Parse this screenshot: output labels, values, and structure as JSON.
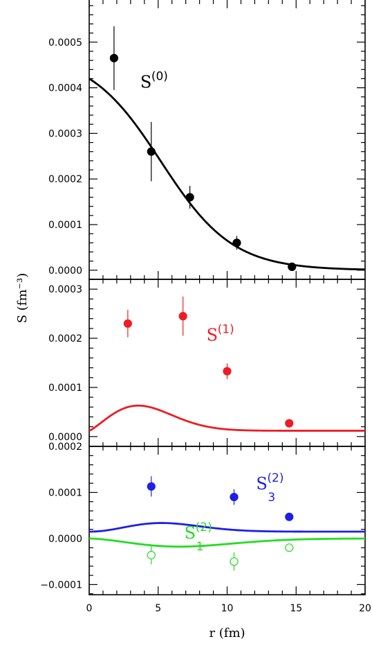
{
  "chart_data": {
    "type": "scatter",
    "xlabel": "r (fm)",
    "ylabel": "S (fm⁻³)",
    "xlim": [
      0,
      20
    ],
    "x_ticks": [
      "0",
      "5",
      "10",
      "15",
      "20"
    ],
    "panels": [
      {
        "id": "top",
        "ylim": [
          -2e-05,
          0.0006
        ],
        "y_ticks": [
          {
            "v": 0.0,
            "label": "0.0000"
          },
          {
            "v": 0.0001,
            "label": "0.0001"
          },
          {
            "v": 0.0002,
            "label": "0.0002"
          },
          {
            "v": 0.0003,
            "label": "0.0003"
          },
          {
            "v": 0.0004,
            "label": "0.0004"
          },
          {
            "v": 0.0005,
            "label": "0.0005"
          }
        ],
        "series": [
          {
            "name": "S(0)",
            "label_main": "S",
            "label_sup": "(0)",
            "label_sub": "",
            "label_at": [
              3.7,
              0.0004
            ],
            "color": "#000000",
            "filled": true,
            "curve": {
              "form": "fermi",
              "params": [
                0.00042,
                0.0,
                5.2,
                2.6
              ]
            },
            "points": [
              {
                "x": 1.8,
                "y": 0.000465,
                "err": 7e-05
              },
              {
                "x": 4.5,
                "y": 0.00026,
                "err": 6.5e-05
              },
              {
                "x": 7.3,
                "y": 0.00016,
                "err": 2.5e-05
              },
              {
                "x": 10.7,
                "y": 6e-05,
                "err": 1.5e-05
              },
              {
                "x": 14.7,
                "y": 7.5e-06,
                "err": 5e-06
              }
            ]
          }
        ]
      },
      {
        "id": "middle",
        "ylim": [
          -2e-05,
          0.00032
        ],
        "y_ticks": [
          {
            "v": 0.0,
            "label": "0.0000"
          },
          {
            "v": 0.0001,
            "label": "0.0001"
          },
          {
            "v": 0.0002,
            "label": "0.0002"
          },
          {
            "v": 0.0003,
            "label": "0.0003"
          }
        ],
        "series": [
          {
            "name": "S(1)",
            "label_main": "S",
            "label_sup": "(1)",
            "label_sub": "",
            "label_at": [
              8.5,
              0.000195
            ],
            "color": "#ee1c25",
            "filled": true,
            "curve": {
              "form": "power_gauss",
              "params": [
                2.03e-05,
                1.2,
                4.6,
                1.18e-05
              ]
            },
            "points": [
              {
                "x": 2.8,
                "y": 0.00023,
                "err": 2.8e-05
              },
              {
                "x": 6.8,
                "y": 0.000245,
                "err": 4e-05
              },
              {
                "x": 10.0,
                "y": 0.000133,
                "err": 1.6e-05
              },
              {
                "x": 14.5,
                "y": 2.7e-05,
                "err": 6e-06
              }
            ]
          }
        ]
      },
      {
        "id": "bottom",
        "ylim": [
          -0.000122,
          0.0002
        ],
        "y_ticks": [
          {
            "v": -0.0001,
            "label": "−0.0001"
          },
          {
            "v": 0.0,
            "label": "0.0000"
          },
          {
            "v": 0.0001,
            "label": "0.0001"
          },
          {
            "v": 0.0002,
            "label": "0.0002"
          }
        ],
        "series": [
          {
            "name": "S3(2)",
            "label_main": "S",
            "label_sup": "(2)",
            "label_sub": "3",
            "label_at": [
              12.1,
              0.000107
            ],
            "color": "#1e1ee8",
            "filled": true,
            "curve": {
              "form": "power_gauss",
              "params": [
                1.85e-06,
                2.0,
                5.25,
                1.49e-05
              ]
            },
            "points": [
              {
                "x": 4.5,
                "y": 0.000113,
                "err": 2.2e-05
              },
              {
                "x": 10.5,
                "y": 9e-05,
                "err": 1.7e-05
              },
              {
                "x": 14.5,
                "y": 4.7e-05,
                "err": 6e-06
              }
            ]
          },
          {
            "name": "S1(2)",
            "label_main": "S",
            "label_sup": "(2)",
            "label_sub": "1",
            "label_at": [
              6.9,
              0.0
            ],
            "color": "#22dd22",
            "filled": false,
            "curve": {
              "form": "power_gauss",
              "params": [
                -1.95e-06,
                1.6,
                7.3,
                0.0
              ]
            },
            "points": [
              {
                "x": 4.5,
                "y": -3.6e-05,
                "err": 2e-05
              },
              {
                "x": 10.5,
                "y": -5e-05,
                "err": 2e-05
              },
              {
                "x": 14.5,
                "y": -2e-05,
                "err": 5e-06
              }
            ]
          }
        ]
      }
    ]
  }
}
